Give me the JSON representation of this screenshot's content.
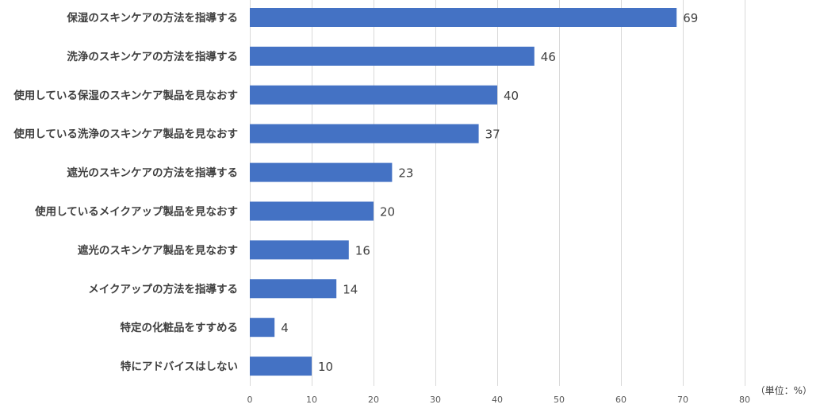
{
  "chart_data": {
    "type": "bar",
    "orientation": "horizontal",
    "categories": [
      "保湿のスキンケアの方法を指導する",
      "洗浄のスキンケアの方法を指導する",
      "使用している保湿のスキンケア製品を見なおす",
      "使用している洗浄のスキンケア製品を見なおす",
      "遮光のスキンケアの方法を指導する",
      "使用しているメイクアップ製品を見なおす",
      "遮光のスキンケア製品を見なおす",
      "メイクアップの方法を指導する",
      "特定の化粧品をすすめる",
      "特にアドバイスはしない"
    ],
    "values": [
      69,
      46,
      40,
      37,
      23,
      20,
      16,
      14,
      4,
      10
    ],
    "xlim": [
      0,
      80
    ],
    "xticks": [
      0,
      10,
      20,
      30,
      40,
      50,
      60,
      70,
      80
    ],
    "unit_label": "（単位：%）",
    "grid": "vertical",
    "legend": "none",
    "bar_color": "#4472C4",
    "data_labels": true
  }
}
